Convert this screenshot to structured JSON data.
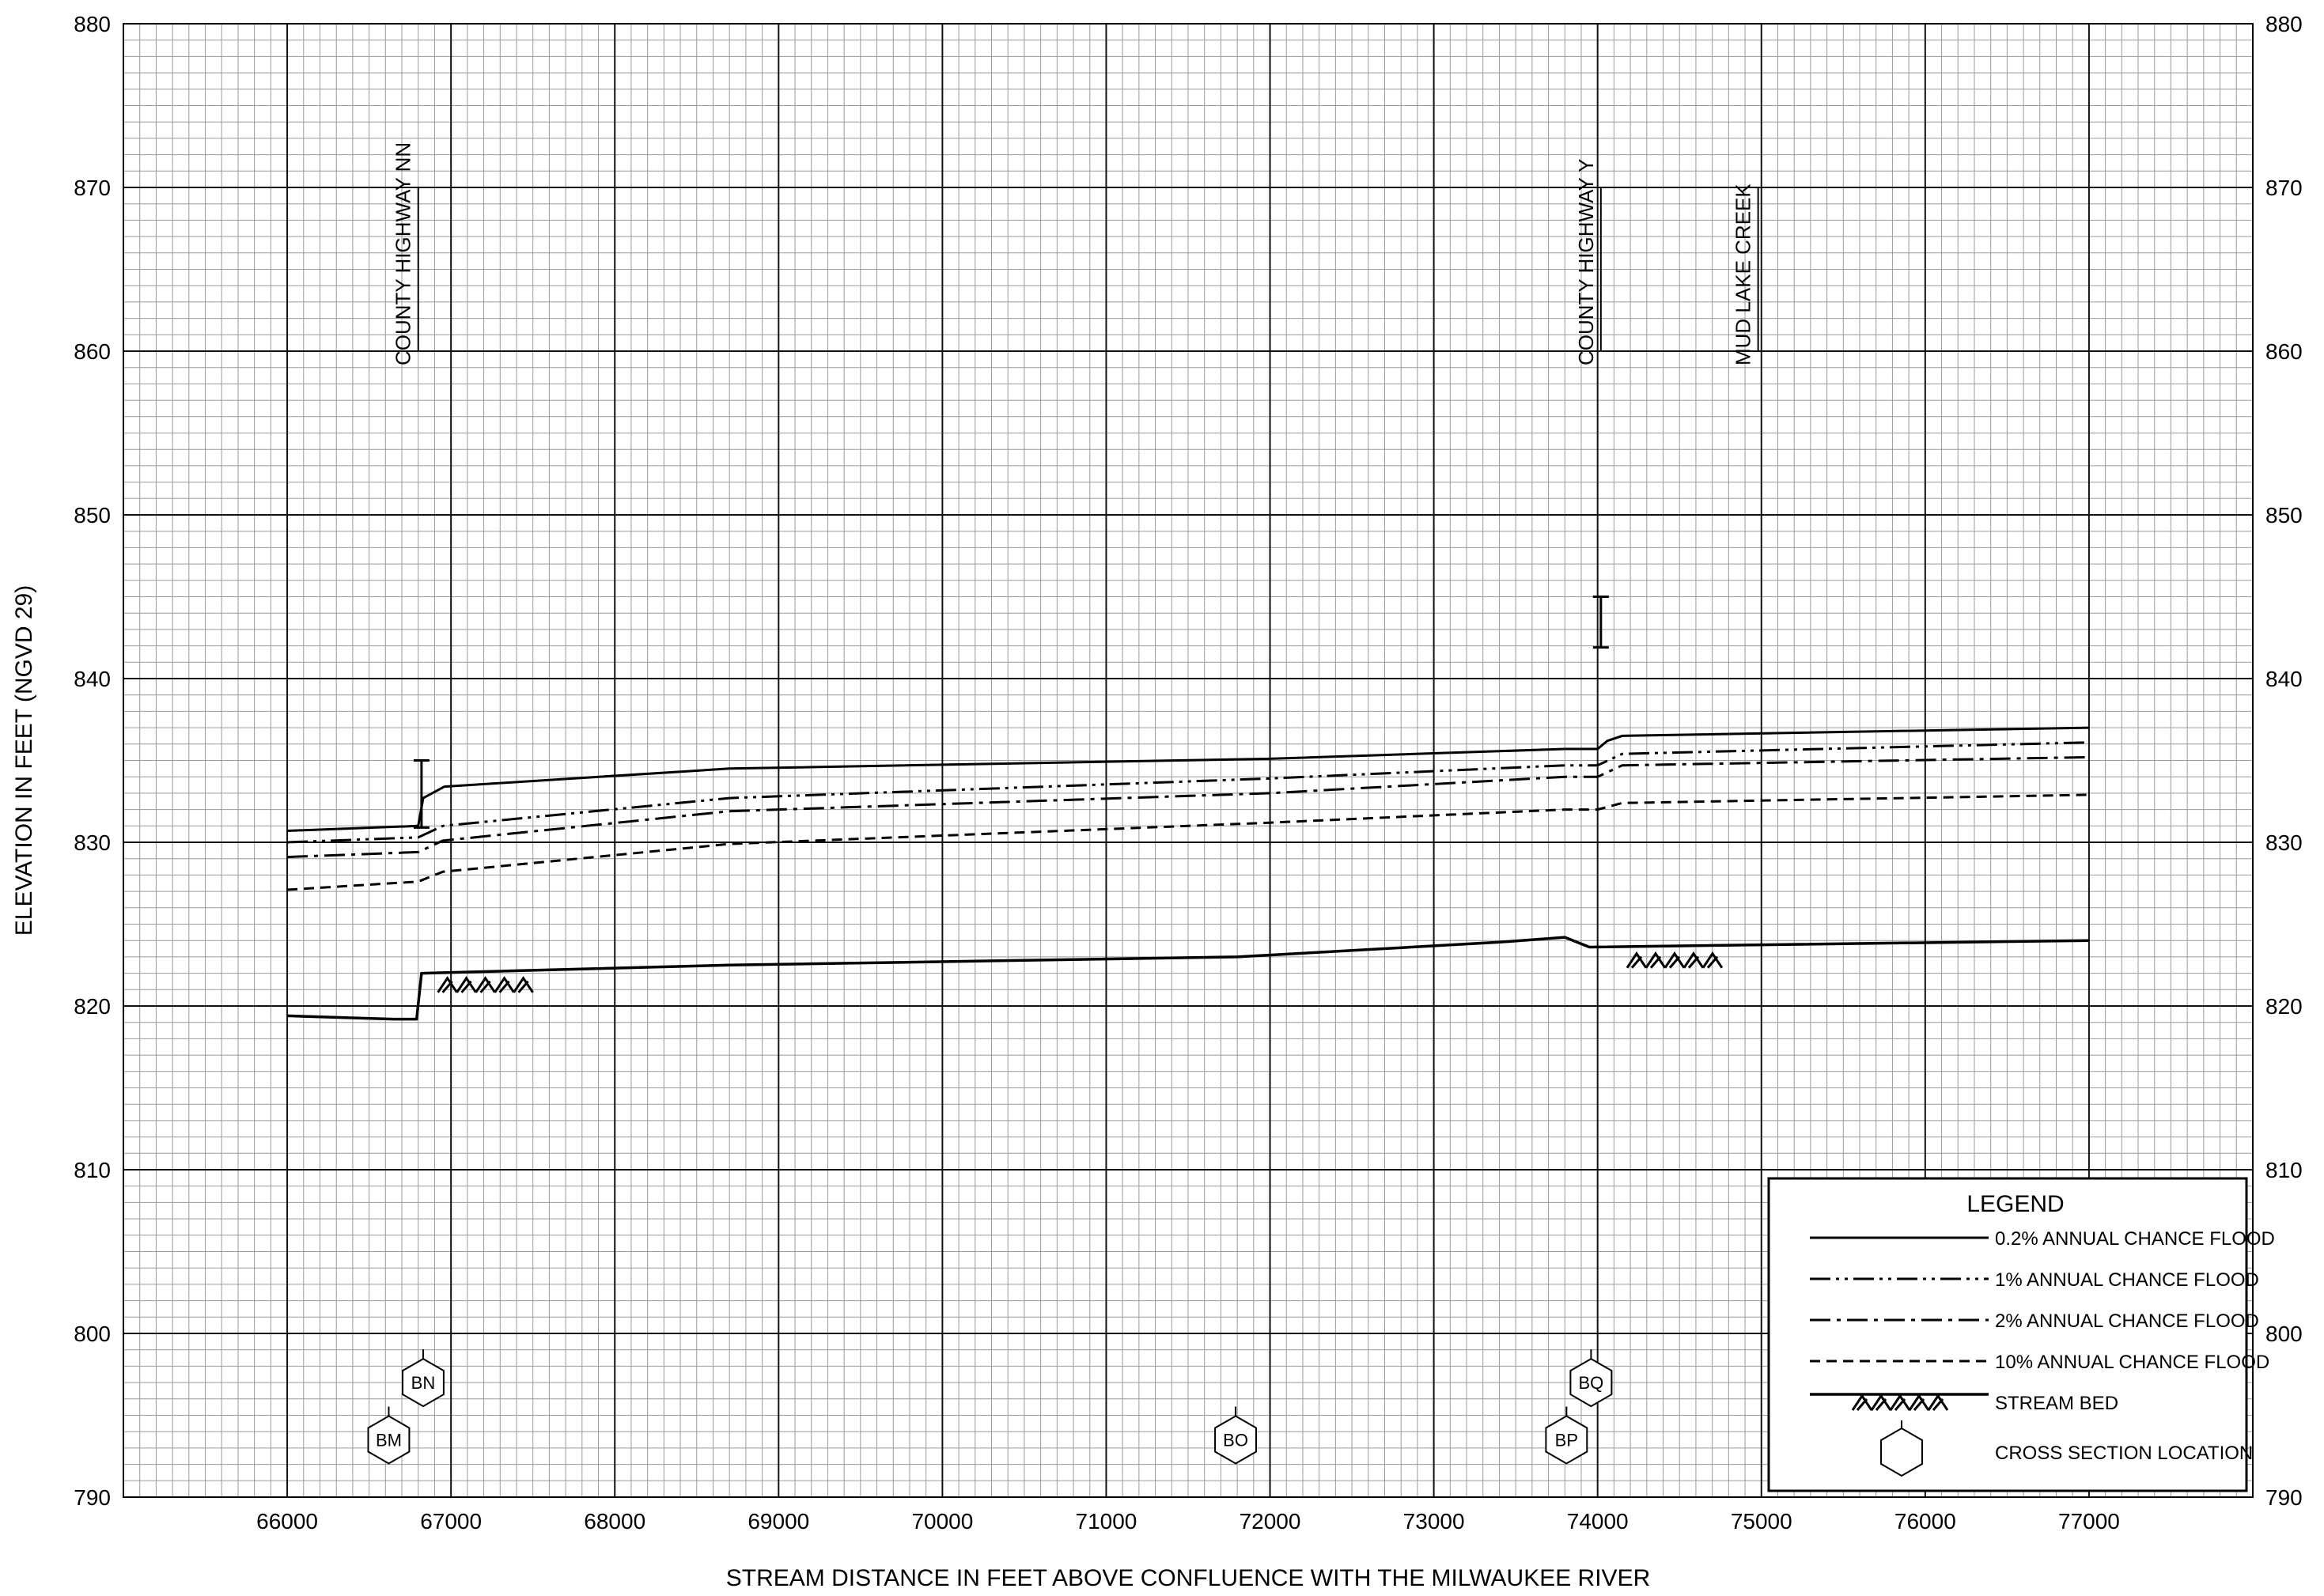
{
  "chart_data": {
    "type": "line",
    "xlabel": "STREAM DISTANCE IN FEET ABOVE CONFLUENCE WITH THE MILWAUKEE RIVER",
    "ylabel": "ELEVATION IN FEET (NGVD 29)",
    "xlim": [
      65000,
      78000
    ],
    "ylim": [
      790,
      880
    ],
    "x_ticks": [
      66000,
      67000,
      68000,
      69000,
      70000,
      71000,
      72000,
      73000,
      74000,
      75000,
      76000,
      77000
    ],
    "y_ticks": [
      790,
      800,
      810,
      820,
      830,
      840,
      850,
      860,
      870,
      880
    ],
    "x_tick_labels": [
      "66000",
      "67000",
      "68000",
      "69000",
      "70000",
      "71000",
      "72000",
      "73000",
      "74000",
      "75000",
      "76000",
      "77000"
    ],
    "y_tick_labels": [
      "790",
      "800",
      "810",
      "820",
      "830",
      "840",
      "850",
      "860",
      "870",
      "880"
    ],
    "grid": true,
    "legend_position": "bottom-right",
    "series": [
      {
        "name": "0.2% ANNUAL CHANCE FLOOD",
        "style": "solid",
        "points": [
          [
            66000,
            830.7
          ],
          [
            66800,
            831.0
          ],
          [
            66830,
            832.7
          ],
          [
            66960,
            833.4
          ],
          [
            68700,
            834.5
          ],
          [
            72000,
            835.1
          ],
          [
            73800,
            835.7
          ],
          [
            74000,
            835.7
          ],
          [
            74060,
            836.2
          ],
          [
            74150,
            836.5
          ],
          [
            77000,
            837.0
          ]
        ]
      },
      {
        "name": "1% ANNUAL CHANCE FLOOD",
        "style": "dash-dot-dot",
        "points": [
          [
            66000,
            830.0
          ],
          [
            66800,
            830.3
          ],
          [
            66950,
            831.0
          ],
          [
            68700,
            832.7
          ],
          [
            72000,
            833.9
          ],
          [
            73800,
            834.7
          ],
          [
            74000,
            834.7
          ],
          [
            74150,
            835.4
          ],
          [
            77000,
            836.1
          ]
        ]
      },
      {
        "name": "2% ANNUAL CHANCE FLOOD",
        "style": "dash-dot",
        "points": [
          [
            66000,
            829.1
          ],
          [
            66800,
            829.4
          ],
          [
            66950,
            830.1
          ],
          [
            68700,
            831.9
          ],
          [
            72000,
            833.0
          ],
          [
            73800,
            834.0
          ],
          [
            74000,
            834.0
          ],
          [
            74150,
            834.7
          ],
          [
            77000,
            835.2
          ]
        ]
      },
      {
        "name": "10% ANNUAL CHANCE FLOOD",
        "style": "dashed",
        "points": [
          [
            66000,
            827.1
          ],
          [
            66800,
            827.6
          ],
          [
            66950,
            828.2
          ],
          [
            68700,
            829.9
          ],
          [
            72000,
            831.2
          ],
          [
            73800,
            832.0
          ],
          [
            74000,
            832.0
          ],
          [
            74150,
            832.4
          ],
          [
            77000,
            832.9
          ]
        ]
      },
      {
        "name": "STREAM BED",
        "style": "bed",
        "points": [
          [
            66000,
            819.4
          ],
          [
            66650,
            819.2
          ],
          [
            66790,
            819.2
          ],
          [
            66820,
            822.0
          ],
          [
            68700,
            822.5
          ],
          [
            71800,
            823.0
          ],
          [
            73400,
            823.9
          ],
          [
            73800,
            824.2
          ],
          [
            73950,
            823.6
          ],
          [
            77000,
            824.0
          ]
        ]
      }
    ],
    "structures": [
      {
        "name": "COUNTY HIGHWAY NN",
        "x": 66800,
        "top": 870,
        "bottom": 860
      },
      {
        "name": "COUNTY HIGHWAY Y",
        "x": 74020,
        "top": 870,
        "bottom": 860
      },
      {
        "name": "MUD LAKE CREEK",
        "x": 74980,
        "top": 870,
        "bottom": 860
      }
    ],
    "elevation_markers": [
      {
        "x": 66820,
        "top": 835.0,
        "bottom": 830.9
      },
      {
        "x": 74020,
        "top": 845.0,
        "bottom": 841.9
      }
    ],
    "bed_hatches": [
      {
        "x_start": 66920,
        "x_end": 67520,
        "y": 821.7
      },
      {
        "x_start": 74180,
        "x_end": 74800,
        "y": 823.2
      }
    ],
    "cross_sections": [
      {
        "label": "BM",
        "x": 66620,
        "y": 793.5
      },
      {
        "label": "BN",
        "x": 66830,
        "y": 797.0
      },
      {
        "label": "BO",
        "x": 71790,
        "y": 793.5
      },
      {
        "label": "BP",
        "x": 73810,
        "y": 793.5
      },
      {
        "label": "BQ",
        "x": 73960,
        "y": 797.0
      }
    ],
    "legend": {
      "title": "LEGEND",
      "entries": [
        {
          "label": "0.2% ANNUAL CHANCE FLOOD",
          "style": "solid"
        },
        {
          "label": "1% ANNUAL CHANCE FLOOD",
          "style": "dash-dot-dot"
        },
        {
          "label": "2% ANNUAL CHANCE FLOOD",
          "style": "dash-dot"
        },
        {
          "label": "10% ANNUAL CHANCE FLOOD",
          "style": "dashed"
        },
        {
          "label": "STREAM BED",
          "style": "bed"
        },
        {
          "label": "CROSS SECTION LOCATION",
          "style": "hexagon"
        }
      ]
    }
  }
}
